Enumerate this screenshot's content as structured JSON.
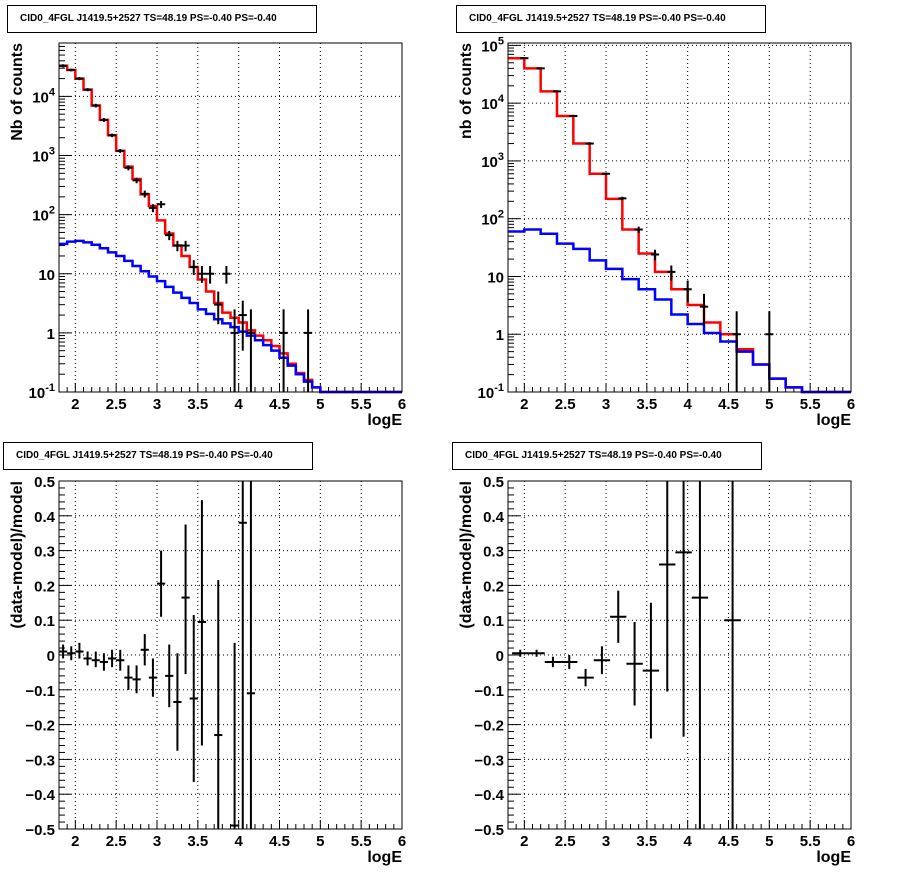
{
  "chart_data": [
    {
      "type": "line",
      "title": "CID0_4FGL J1419.5+2527 TS=48.19 PS=-0.40 PS=-0.40",
      "xlabel": "logE",
      "ylabel": "Nb of counts",
      "xlim": [
        1.8,
        6.0
      ],
      "ylim": [
        0.1,
        80000
      ],
      "log_y": true,
      "grid": true,
      "x_ticks": [
        "2",
        "2.5",
        "3",
        "3.5",
        "4",
        "4.5",
        "5",
        "5.5",
        "6"
      ],
      "y_ticks": [
        "10^{-1}",
        "1",
        "10",
        "10^{2}",
        "10^{3}",
        "10^{4}"
      ],
      "bin_edges": [
        1.8,
        1.9,
        2.0,
        2.1,
        2.2,
        2.3,
        2.4,
        2.5,
        2.6,
        2.7,
        2.8,
        2.9,
        3.0,
        3.1,
        3.2,
        3.3,
        3.4,
        3.5,
        3.6,
        3.7,
        3.8,
        3.9,
        4.0,
        4.1,
        4.2,
        4.3,
        4.4,
        4.5,
        4.6,
        4.7,
        4.8,
        4.9,
        5.0,
        5.1,
        5.2,
        5.3,
        5.4,
        5.5,
        5.6,
        5.7,
        5.8,
        5.9,
        6.0
      ],
      "series": [
        {
          "color": "#ff0000",
          "values": [
            33000,
            28000,
            20000,
            13000,
            7000,
            4000,
            2200,
            1200,
            650,
            400,
            220,
            140,
            80,
            48,
            30,
            20,
            13,
            8,
            5,
            3.2,
            2.2,
            1.8,
            1.5,
            1.1,
            0.9,
            0.75,
            0.6,
            0.45,
            0.3,
            0.21,
            0.16,
            0.12,
            0.1,
            0.1,
            0.1,
            0.1,
            0.1,
            0.1,
            0.1,
            0.1,
            0.1,
            0.1
          ]
        },
        {
          "color": "#0000ff",
          "values": [
            32,
            35,
            36,
            34,
            31,
            27,
            23,
            20,
            16.5,
            13.5,
            11,
            9,
            7.5,
            6,
            4.8,
            3.9,
            3.2,
            2.5,
            2.1,
            1.7,
            1.45,
            1.25,
            1.05,
            0.9,
            0.75,
            0.62,
            0.5,
            0.38,
            0.28,
            0.2,
            0.15,
            0.12,
            0.1,
            0.1,
            0.1,
            0.1,
            0.1,
            0.1,
            0.1,
            0.1,
            0.1,
            0.1
          ]
        }
      ],
      "points": [
        {
          "x": 1.85,
          "y": 33000,
          "lo": 31000,
          "hi": 35000
        },
        {
          "x": 1.95,
          "y": 28000,
          "lo": 26500,
          "hi": 29500
        },
        {
          "x": 2.05,
          "y": 20000,
          "lo": 18800,
          "hi": 21200
        },
        {
          "x": 2.15,
          "y": 13000,
          "lo": 12200,
          "hi": 13800
        },
        {
          "x": 2.25,
          "y": 7000,
          "lo": 6500,
          "hi": 7500
        },
        {
          "x": 2.35,
          "y": 4000,
          "lo": 3700,
          "hi": 4300
        },
        {
          "x": 2.45,
          "y": 2200,
          "lo": 2050,
          "hi": 2350
        },
        {
          "x": 2.55,
          "y": 1200,
          "lo": 1110,
          "hi": 1290
        },
        {
          "x": 2.65,
          "y": 620,
          "lo": 560,
          "hi": 680
        },
        {
          "x": 2.75,
          "y": 380,
          "lo": 340,
          "hi": 420
        },
        {
          "x": 2.85,
          "y": 225,
          "lo": 195,
          "hi": 255
        },
        {
          "x": 2.95,
          "y": 130,
          "lo": 110,
          "hi": 150
        },
        {
          "x": 3.05,
          "y": 150,
          "lo": 130,
          "hi": 170
        },
        {
          "x": 3.15,
          "y": 45,
          "lo": 37,
          "hi": 53
        },
        {
          "x": 3.25,
          "y": 30,
          "lo": 24,
          "hi": 36
        },
        {
          "x": 3.35,
          "y": 30,
          "lo": 24,
          "hi": 36
        },
        {
          "x": 3.45,
          "y": 13,
          "lo": 9.5,
          "hi": 17
        },
        {
          "x": 3.55,
          "y": 10,
          "lo": 7,
          "hi": 13.5
        },
        {
          "x": 3.65,
          "y": 10,
          "lo": 6.8,
          "hi": 13.5
        },
        {
          "x": 3.75,
          "y": 3,
          "lo": 1.4,
          "hi": 5
        },
        {
          "x": 3.85,
          "y": 10,
          "lo": 6.8,
          "hi": 13.5
        },
        {
          "x": 3.95,
          "y": 1,
          "lo": 0.1,
          "hi": 2.5
        },
        {
          "x": 4.05,
          "y": 2,
          "lo": 0.5,
          "hi": 3.5
        },
        {
          "x": 4.15,
          "y": 1,
          "lo": 0.1,
          "hi": 2.5
        },
        {
          "x": 4.55,
          "y": 1,
          "lo": 0.1,
          "hi": 2.5
        },
        {
          "x": 4.85,
          "y": 1,
          "lo": 0.1,
          "hi": 2.5
        }
      ]
    },
    {
      "type": "line",
      "title": "CID0_4FGL J1419.5+2527 TS=48.19 PS=-0.40 PS=-0.40",
      "xlabel": "logE",
      "ylabel": "nb of counts",
      "xlim": [
        1.8,
        6.0
      ],
      "ylim": [
        0.1,
        110000
      ],
      "log_y": true,
      "grid": true,
      "x_ticks": [
        "2",
        "2.5",
        "3",
        "3.5",
        "4",
        "4.5",
        "5",
        "5.5",
        "6"
      ],
      "y_ticks": [
        "10^{-1}",
        "1",
        "10",
        "10^{2}",
        "10^{3}",
        "10^{4}",
        "10^{5}"
      ],
      "bin_edges": [
        1.8,
        2.0,
        2.2,
        2.4,
        2.6,
        2.8,
        3.0,
        3.2,
        3.4,
        3.6,
        3.8,
        4.0,
        4.2,
        4.4,
        4.6,
        4.8,
        5.0,
        5.2,
        5.4,
        5.6,
        5.8,
        6.0
      ],
      "series": [
        {
          "color": "#ff0000",
          "values": [
            60000,
            40000,
            16000,
            6000,
            2000,
            600,
            220,
            65,
            25,
            12,
            6,
            3.2,
            1.6,
            1.0,
            0.55,
            0.3,
            0.17,
            0.12,
            0.1,
            0.1,
            0.1
          ]
        },
        {
          "color": "#0000ff",
          "values": [
            60,
            65,
            55,
            37,
            30,
            19,
            13.5,
            9,
            6,
            4,
            2.2,
            1.5,
            1.05,
            0.75,
            0.5,
            0.3,
            0.17,
            0.12,
            0.1,
            0.1,
            0.1
          ]
        }
      ],
      "points": [
        {
          "x": 2.0,
          "y": 60000,
          "lo": 59000,
          "hi": 61000
        },
        {
          "x": 2.2,
          "y": 40000,
          "lo": 39000,
          "hi": 41000
        },
        {
          "x": 2.4,
          "y": 16000,
          "lo": 15500,
          "hi": 16500
        },
        {
          "x": 2.6,
          "y": 6000,
          "lo": 5800,
          "hi": 6200
        },
        {
          "x": 2.8,
          "y": 2000,
          "lo": 1900,
          "hi": 2100
        },
        {
          "x": 3.0,
          "y": 600,
          "lo": 570,
          "hi": 630
        },
        {
          "x": 3.2,
          "y": 225,
          "lo": 210,
          "hi": 240
        },
        {
          "x": 3.4,
          "y": 65,
          "lo": 57,
          "hi": 73
        },
        {
          "x": 3.6,
          "y": 24,
          "lo": 19,
          "hi": 29
        },
        {
          "x": 3.8,
          "y": 12,
          "lo": 8.5,
          "hi": 15.5
        },
        {
          "x": 4.0,
          "y": 6,
          "lo": 3.6,
          "hi": 8.5
        },
        {
          "x": 4.2,
          "y": 3,
          "lo": 1.4,
          "hi": 5
        },
        {
          "x": 4.6,
          "y": 1,
          "lo": 0.1,
          "hi": 2.5
        },
        {
          "x": 5.0,
          "y": 1,
          "lo": 0.1,
          "hi": 2.5
        }
      ]
    },
    {
      "type": "scatter",
      "title": "CID0_4FGL J1419.5+2527 TS=48.19 PS=-0.40 PS=-0.40",
      "xlabel": "logE",
      "ylabel": "(data-model)/model",
      "xlim": [
        1.8,
        6.0
      ],
      "ylim": [
        -0.5,
        0.5
      ],
      "grid": true,
      "x_ticks": [
        "2",
        "2.5",
        "3",
        "3.5",
        "4",
        "4.5",
        "5",
        "5.5",
        "6"
      ],
      "y_ticks": [
        "−0.5",
        "−0.4",
        "−0.3",
        "−0.2",
        "−0.1",
        "0",
        "0.1",
        "0.2",
        "0.3",
        "0.4",
        "0.5"
      ],
      "xerr": 0.05,
      "points": [
        {
          "x": 1.85,
          "y": 0.01,
          "lo": -0.01,
          "hi": 0.03
        },
        {
          "x": 1.95,
          "y": 0.005,
          "lo": -0.015,
          "hi": 0.025
        },
        {
          "x": 2.05,
          "y": 0.01,
          "lo": -0.01,
          "hi": 0.035
        },
        {
          "x": 2.15,
          "y": -0.01,
          "lo": -0.03,
          "hi": 0.01
        },
        {
          "x": 2.25,
          "y": -0.015,
          "lo": -0.035,
          "hi": 0.01
        },
        {
          "x": 2.35,
          "y": -0.02,
          "lo": -0.045,
          "hi": 0.005
        },
        {
          "x": 2.45,
          "y": -0.01,
          "lo": -0.035,
          "hi": 0.015
        },
        {
          "x": 2.55,
          "y": -0.015,
          "lo": -0.045,
          "hi": 0.015
        },
        {
          "x": 2.65,
          "y": -0.065,
          "lo": -0.1,
          "hi": -0.03
        },
        {
          "x": 2.75,
          "y": -0.07,
          "lo": -0.11,
          "hi": -0.03
        },
        {
          "x": 2.85,
          "y": 0.015,
          "lo": -0.03,
          "hi": 0.06
        },
        {
          "x": 2.95,
          "y": -0.065,
          "lo": -0.12,
          "hi": -0.01
        },
        {
          "x": 3.05,
          "y": 0.205,
          "lo": 0.11,
          "hi": 0.3
        },
        {
          "x": 3.15,
          "y": -0.06,
          "lo": -0.15,
          "hi": 0.03
        },
        {
          "x": 3.25,
          "y": -0.135,
          "lo": -0.275,
          "hi": 0.005
        },
        {
          "x": 3.35,
          "y": 0.165,
          "lo": -0.055,
          "hi": 0.375
        },
        {
          "x": 3.45,
          "y": -0.125,
          "lo": -0.365,
          "hi": 0.115
        },
        {
          "x": 3.55,
          "y": 0.095,
          "lo": -0.26,
          "hi": 0.445
        },
        {
          "x": 3.75,
          "y": -0.23,
          "lo": -0.68,
          "hi": 0.215
        },
        {
          "x": 3.95,
          "y": -0.49,
          "lo": -0.9,
          "hi": 0.035
        },
        {
          "x": 4.05,
          "y": 0.38,
          "lo": -0.6,
          "hi": 0.9
        },
        {
          "x": 4.15,
          "y": -0.11,
          "lo": -0.9,
          "hi": 0.9
        }
      ]
    },
    {
      "type": "scatter",
      "title": "CID0_4FGL J1419.5+2527 TS=48.19 PS=-0.40 PS=-0.40",
      "xlabel": "logE",
      "ylabel": "(data-model)/model",
      "xlim": [
        1.8,
        6.0
      ],
      "ylim": [
        -0.5,
        0.5
      ],
      "grid": true,
      "x_ticks": [
        "2",
        "2.5",
        "3",
        "3.5",
        "4",
        "4.5",
        "5",
        "5.5",
        "6"
      ],
      "y_ticks": [
        "−0.5",
        "−0.4",
        "−0.3",
        "−0.2",
        "−0.1",
        "0",
        "0.1",
        "0.2",
        "0.3",
        "0.4",
        "0.5"
      ],
      "xerr": 0.1,
      "points": [
        {
          "x": 1.95,
          "y": 0.005,
          "lo": -0.005,
          "hi": 0.015
        },
        {
          "x": 2.15,
          "y": 0.005,
          "lo": -0.005,
          "hi": 0.015
        },
        {
          "x": 2.35,
          "y": -0.02,
          "lo": -0.035,
          "hi": -0.005
        },
        {
          "x": 2.55,
          "y": -0.02,
          "lo": -0.04,
          "hi": 0.0
        },
        {
          "x": 2.75,
          "y": -0.065,
          "lo": -0.09,
          "hi": -0.04
        },
        {
          "x": 2.95,
          "y": -0.015,
          "lo": -0.055,
          "hi": 0.025
        },
        {
          "x": 3.15,
          "y": 0.11,
          "lo": 0.035,
          "hi": 0.185
        },
        {
          "x": 3.35,
          "y": -0.025,
          "lo": -0.145,
          "hi": 0.095
        },
        {
          "x": 3.55,
          "y": -0.045,
          "lo": -0.24,
          "hi": 0.15
        },
        {
          "x": 3.75,
          "y": 0.26,
          "lo": -0.105,
          "hi": 0.9
        },
        {
          "x": 3.95,
          "y": 0.295,
          "lo": -0.235,
          "hi": 0.9
        },
        {
          "x": 4.15,
          "y": 0.165,
          "lo": -0.9,
          "hi": 0.9
        },
        {
          "x": 4.55,
          "y": 0.1,
          "lo": -0.9,
          "hi": 0.9
        }
      ]
    }
  ]
}
